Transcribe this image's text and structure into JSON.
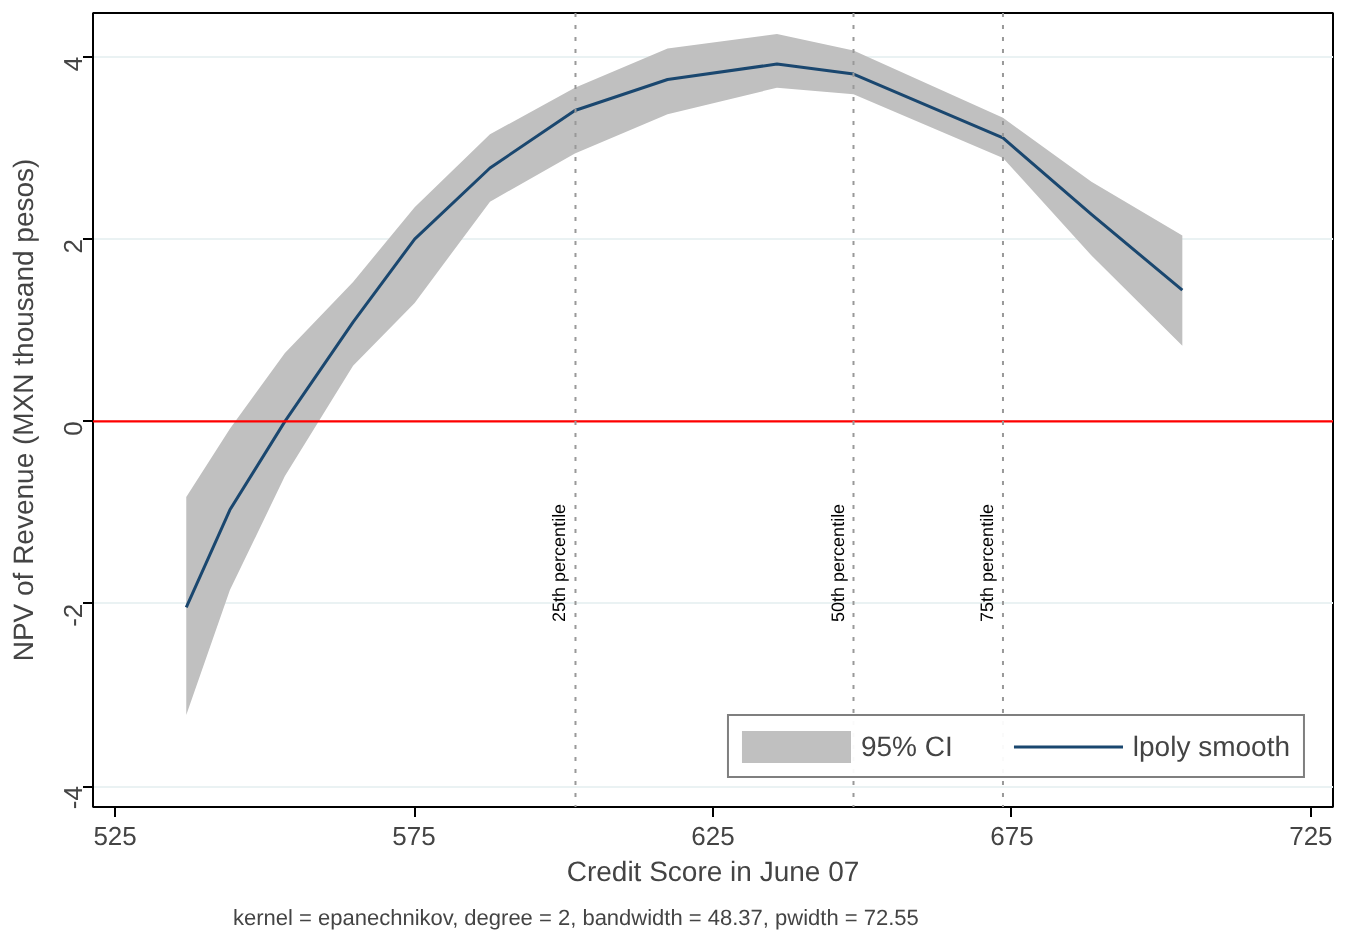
{
  "chart_data": {
    "type": "line",
    "xlabel": "Credit Score in June 07",
    "ylabel": "NPV of Revenue (MXN thousand pesos)",
    "annotations": [
      "95% CI",
      "kernel = epanechnikov, degree = 2, bandwidth = 48.37, pwidth = 72.55"
    ],
    "xlim": [
      521.3,
      728.7
    ],
    "ylim": [
      -4.23,
      4.48
    ],
    "xticks": [
      525,
      575,
      625,
      675,
      725
    ],
    "yticks": [
      -4,
      -2,
      0,
      2,
      4
    ],
    "grid": "y",
    "legend": "bottom right",
    "line_style": "solid",
    "marker": "none",
    "series": [
      {
        "name": "lpoly smooth",
        "color": "#1a476f",
        "x": [
          536.9,
          544.2,
          553.4,
          564.8,
          575.1,
          587.7,
          601.9,
          617.4,
          635.7,
          648.5,
          673.5,
          688.3,
          703.5
        ],
        "values": [
          -2.04,
          -0.97,
          0,
          1.09,
          2.0,
          2.78,
          3.41,
          3.75,
          3.92,
          3.81,
          3.11,
          2.27,
          1.44
        ],
        "lower": [
          -3.22,
          -1.85,
          -0.6,
          0.61,
          1.3,
          2.41,
          2.94,
          3.37,
          3.66,
          3.59,
          2.89,
          1.82,
          0.83
        ],
        "upper": [
          -0.83,
          -0.08,
          0.75,
          1.53,
          2.35,
          3.15,
          3.66,
          4.09,
          4.25,
          4.07,
          3.33,
          2.63,
          2.04
        ]
      }
    ],
    "ref_lines": [
      {
        "axis": "y",
        "value": 0,
        "color": "#ff0000",
        "line_style": "solid"
      },
      {
        "axis": "x",
        "value": 602,
        "label": "25th percentile",
        "color": "#999999",
        "line_style": "dotted"
      },
      {
        "axis": "x",
        "value": 648.5,
        "label": "50th percentile",
        "color": "#999999",
        "line_style": "dotted"
      },
      {
        "axis": "x",
        "value": 673.5,
        "label": "75th percentile",
        "color": "#999999",
        "line_style": "dotted"
      }
    ]
  }
}
